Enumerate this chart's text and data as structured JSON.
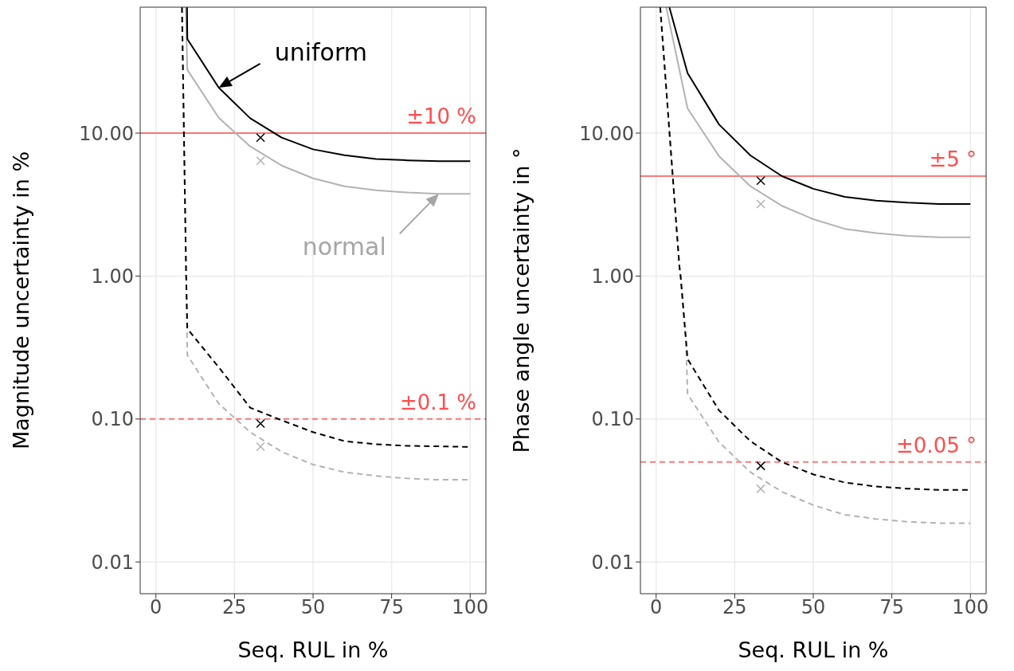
{
  "chart_data": [
    {
      "type": "line",
      "xlabel": "Seq. RUL in %",
      "ylabel": "Magnitude uncertainty in %",
      "xlim": [
        -5,
        105
      ],
      "ylim": [
        0.006,
        76
      ],
      "log": "y",
      "grid": true,
      "xticks": [
        0,
        25,
        50,
        75,
        100
      ],
      "yticks": [
        {
          "value": 0.01,
          "label": "0.01"
        },
        {
          "value": 0.1,
          "label": "0.10"
        },
        {
          "value": 1,
          "label": "1.00"
        },
        {
          "value": 10,
          "label": "10.00"
        }
      ],
      "series": [
        {
          "color": "#b3b3b3",
          "line_style": "dashed",
          "x": [
            8.3,
            9.6,
            10,
            20,
            30,
            40,
            50,
            60,
            70,
            80,
            90,
            100
          ],
          "values": [
            76,
            1.07,
            0.28,
            0.128,
            0.081,
            0.059,
            0.048,
            0.0425,
            0.04,
            0.0384,
            0.0376,
            0.0376
          ]
        },
        {
          "color": "#000000",
          "line_style": "dashed",
          "x": [
            8.3,
            9.6,
            10,
            20,
            30,
            40,
            50,
            60,
            70,
            80,
            90,
            100
          ],
          "values": [
            76,
            1.07,
            0.428,
            0.23,
            0.12,
            0.098,
            0.081,
            0.07,
            0.0666,
            0.0649,
            0.0644,
            0.0638
          ]
        },
        {
          "color": "#b3b3b3",
          "line_style": "solid",
          "x": [
            9.5,
            10,
            20,
            30,
            40,
            50,
            60,
            70,
            80,
            90,
            100
          ],
          "values": [
            76,
            27.7,
            12.8,
            8.07,
            5.93,
            4.83,
            4.25,
            3.98,
            3.84,
            3.76,
            3.76
          ]
        },
        {
          "color": "#000000",
          "line_style": "solid",
          "x": [
            9.9,
            10,
            20,
            30,
            40,
            50,
            60,
            70,
            80,
            90,
            100
          ],
          "values": [
            76,
            45.5,
            20.8,
            12.7,
            9.3,
            7.7,
            7,
            6.6,
            6.45,
            6.36,
            6.36
          ]
        },
        {
          "type": "scatter",
          "marker": "cross",
          "color": "#b3b3b3",
          "x": [
            33.3,
            33.3
          ],
          "values": [
            6.4,
            0.064
          ]
        },
        {
          "type": "scatter",
          "marker": "cross",
          "color": "#000000",
          "x": [
            33.3,
            33.3
          ],
          "values": [
            9.3,
            0.093
          ]
        }
      ],
      "ref_lines": [
        {
          "axis": "y",
          "value": 10,
          "label": "±10 %",
          "color": "#ff4d4d",
          "line_style": "solid"
        },
        {
          "axis": "y",
          "value": 0.1,
          "label": "±0.1 %",
          "color": "#ff4d4d",
          "line_style": "dashed"
        }
      ],
      "annotations": [
        {
          "text": "uniform",
          "x": 20,
          "y": 20.8
        },
        {
          "text": "normal",
          "x": 90,
          "y": 3.76
        }
      ]
    },
    {
      "type": "line",
      "xlabel": "Seq. RUL in %",
      "ylabel": "Phase angle uncertainty in °",
      "xlim": [
        -5,
        105
      ],
      "ylim": [
        0.006,
        76
      ],
      "log": "y",
      "grid": true,
      "xticks": [
        0,
        25,
        50,
        75,
        100
      ],
      "yticks": [
        {
          "value": 0.01,
          "label": "0.01"
        },
        {
          "value": 0.1,
          "label": "0.10"
        },
        {
          "value": 1,
          "label": "1.00"
        },
        {
          "value": 10,
          "label": "10.00"
        }
      ],
      "series": [
        {
          "color": "#b3b3b3",
          "line_style": "dashed",
          "x": [
            1.3,
            7.4,
            7.8,
            9.5,
            10,
            20,
            30,
            40,
            50,
            60,
            70,
            80,
            90,
            100
          ],
          "values": [
            76,
            1.17,
            0.99,
            0.35,
            0.149,
            0.069,
            0.0425,
            0.031,
            0.025,
            0.0214,
            0.02,
            0.0191,
            0.0187,
            0.0187
          ]
        },
        {
          "color": "#000000",
          "line_style": "dashed",
          "x": [
            1.3,
            7.4,
            7.8,
            10,
            20,
            30,
            40,
            50,
            60,
            70,
            80,
            90,
            100
          ],
          "values": [
            76,
            1.17,
            0.99,
            0.263,
            0.115,
            0.07,
            0.05,
            0.041,
            0.036,
            0.0337,
            0.0326,
            0.0319,
            0.0319
          ]
        },
        {
          "color": "#b3b3b3",
          "line_style": "solid",
          "x": [
            3.2,
            10,
            20,
            30,
            40,
            50,
            60,
            70,
            80,
            90,
            100
          ],
          "values": [
            76,
            14.9,
            6.9,
            4.25,
            3.1,
            2.5,
            2.14,
            2,
            1.91,
            1.87,
            1.87
          ]
        },
        {
          "color": "#000000",
          "line_style": "solid",
          "x": [
            4.2,
            10,
            20,
            30,
            40,
            50,
            60,
            70,
            80,
            90,
            100
          ],
          "values": [
            76,
            26.3,
            11.5,
            6.98,
            5,
            4.08,
            3.58,
            3.37,
            3.26,
            3.19,
            3.19
          ]
        },
        {
          "type": "scatter",
          "marker": "cross",
          "color": "#b3b3b3",
          "x": [
            33.3,
            33.3
          ],
          "values": [
            3.19,
            0.0325
          ]
        },
        {
          "type": "scatter",
          "marker": "cross",
          "color": "#000000",
          "x": [
            33.3,
            33.3
          ],
          "values": [
            4.65,
            0.047
          ]
        }
      ],
      "ref_lines": [
        {
          "axis": "y",
          "value": 5,
          "label": "±5 °",
          "color": "#ff4d4d",
          "line_style": "solid"
        },
        {
          "axis": "y",
          "value": 0.05,
          "label": "±0.05 °",
          "color": "#ff4d4d",
          "line_style": "dashed"
        }
      ]
    }
  ]
}
